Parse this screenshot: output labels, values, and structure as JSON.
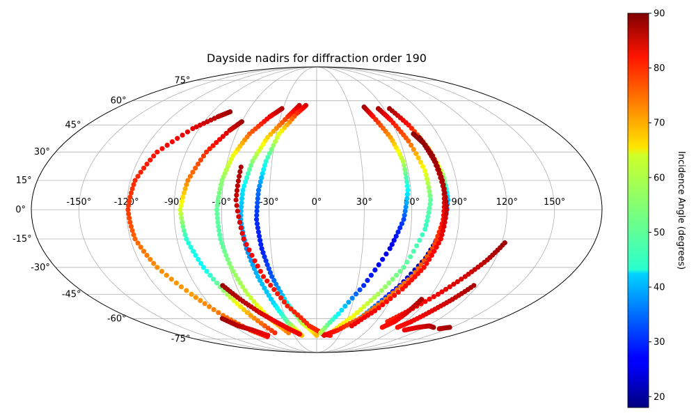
{
  "chart_data": {
    "type": "scatter",
    "projection": "mollweide",
    "title": "Dayside nadirs for diffraction order 190",
    "grid": true,
    "lon_ticks": [
      "-150°",
      "-120°",
      "-90°",
      "-60°",
      "-30°",
      "0°",
      "30°",
      "60°",
      "90°",
      "120°",
      "150°"
    ],
    "lat_ticks": [
      "75°",
      "60°",
      "45°",
      "30°",
      "15°",
      "0°",
      "-15°",
      "-30°",
      "-45°",
      "-60°",
      "-75°"
    ],
    "colorbar": {
      "label": "Incidence Angle (degrees)",
      "colormap": "jet",
      "range": [
        18,
        90
      ],
      "ticks": [
        "20",
        "30",
        "40",
        "50",
        "60",
        "70",
        "80",
        "90"
      ]
    },
    "series": [
      {
        "points": [
          [
            -75,
            53,
            88
          ],
          [
            -82,
            50,
            86
          ],
          [
            -95,
            43,
            83
          ],
          [
            -110,
            30,
            80
          ],
          [
            -117,
            15,
            78
          ],
          [
            -119,
            0,
            77
          ],
          [
            -117,
            -15,
            74
          ],
          [
            -110,
            -30,
            71
          ],
          [
            -98,
            -45,
            70
          ],
          [
            -88,
            -58,
            73
          ],
          [
            -78,
            -68,
            77
          ],
          [
            -68,
            -73,
            80
          ]
        ]
      },
      {
        "points": [
          [
            -60,
            47,
            88
          ],
          [
            -66,
            42,
            84
          ],
          [
            -76,
            30,
            78
          ],
          [
            -83,
            15,
            72
          ],
          [
            -86,
            0,
            60
          ],
          [
            -84,
            -15,
            48
          ],
          [
            -78,
            -30,
            45
          ],
          [
            -70,
            -45,
            57
          ],
          [
            -62,
            -58,
            70
          ],
          [
            -52,
            -70,
            78
          ]
        ]
      },
      {
        "points": [
          [
            -31,
            55,
            87
          ],
          [
            -39,
            50,
            82
          ],
          [
            -50,
            40,
            74
          ],
          [
            -57,
            28,
            62
          ],
          [
            -61,
            15,
            55
          ],
          [
            -63,
            0,
            52
          ],
          [
            -62,
            -15,
            51
          ],
          [
            -59,
            -30,
            55
          ],
          [
            -54,
            -45,
            58
          ],
          [
            -46,
            -60,
            65
          ],
          [
            -35,
            -70,
            72
          ]
        ]
      },
      {
        "points": [
          [
            -16,
            57,
            85
          ],
          [
            -24,
            50,
            78
          ],
          [
            -36,
            38,
            66
          ],
          [
            -43,
            25,
            55
          ],
          [
            -47,
            10,
            43
          ],
          [
            -48,
            -5,
            39
          ],
          [
            -46,
            -20,
            37
          ],
          [
            -42,
            -35,
            40
          ],
          [
            -36,
            -50,
            42
          ],
          [
            -30,
            -62,
            52
          ],
          [
            -20,
            -72,
            68
          ]
        ]
      },
      {
        "points": [
          [
            -10,
            57,
            84
          ],
          [
            -17,
            52,
            78
          ],
          [
            -28,
            40,
            62
          ],
          [
            -34,
            25,
            48
          ],
          [
            -37,
            10,
            35
          ],
          [
            -38,
            -5,
            30
          ],
          [
            -36,
            -20,
            29
          ],
          [
            -32,
            -35,
            33
          ],
          [
            -25,
            -50,
            44
          ],
          [
            -15,
            -63,
            58
          ],
          [
            0,
            -72,
            68
          ]
        ]
      },
      {
        "points": [
          [
            -50,
            22,
            87
          ],
          [
            -51,
            5,
            85
          ],
          [
            -47,
            -15,
            82
          ],
          [
            -38,
            -35,
            80
          ],
          [
            -25,
            -52,
            79
          ],
          [
            -8,
            -65,
            78
          ],
          [
            8,
            -71,
            79
          ],
          [
            18,
            -72,
            80
          ]
        ]
      },
      {
        "points": [
          [
            -70,
            -40,
            88
          ],
          [
            -62,
            -48,
            86
          ],
          [
            -52,
            -56,
            84
          ],
          [
            -42,
            -62,
            82
          ],
          [
            -32,
            -67,
            82
          ],
          [
            -22,
            -71,
            82
          ]
        ]
      },
      {
        "points": [
          [
            -92,
            -60,
            88
          ],
          [
            -85,
            -65,
            86
          ],
          [
            -75,
            -68,
            84
          ],
          [
            -65,
            -72,
            82
          ]
        ]
      },
      {
        "points": [
          [
            43,
            56,
            88
          ],
          [
            47,
            50,
            80
          ],
          [
            54,
            38,
            70
          ],
          [
            58,
            25,
            58
          ],
          [
            58,
            10,
            45
          ],
          [
            55,
            -5,
            32
          ],
          [
            48,
            -20,
            25
          ],
          [
            35,
            -40,
            30
          ],
          [
            20,
            -57,
            45
          ],
          [
            5,
            -70,
            58
          ]
        ]
      },
      {
        "points": [
          [
            55,
            55,
            87
          ],
          [
            60,
            48,
            80
          ],
          [
            66,
            36,
            74
          ],
          [
            71,
            20,
            62
          ],
          [
            72,
            5,
            52
          ],
          [
            69,
            -10,
            49
          ],
          [
            60,
            -30,
            52
          ],
          [
            48,
            -45,
            57
          ],
          [
            35,
            -58,
            62
          ],
          [
            18,
            -70,
            66
          ]
        ]
      },
      {
        "points": [
          [
            65,
            55,
            88
          ],
          [
            72,
            45,
            80
          ],
          [
            78,
            32,
            70
          ],
          [
            82,
            18,
            57
          ],
          [
            83,
            5,
            40
          ],
          [
            80,
            -10,
            25
          ],
          [
            73,
            -25,
            20
          ],
          [
            62,
            -40,
            24
          ],
          [
            50,
            -52,
            35
          ],
          [
            40,
            -62,
            45
          ]
        ]
      },
      {
        "points": [
          [
            72,
            40,
            89
          ],
          [
            76,
            35,
            88
          ],
          [
            79,
            25,
            86
          ],
          [
            81,
            10,
            84
          ],
          [
            80,
            -5,
            80
          ],
          [
            76,
            -20,
            76
          ],
          [
            68,
            -35,
            73
          ],
          [
            56,
            -48,
            72
          ],
          [
            42,
            -60,
            75
          ],
          [
            25,
            -68,
            79
          ],
          [
            10,
            -72,
            82
          ]
        ]
      },
      {
        "points": [
          [
            75,
            38,
            89
          ],
          [
            79,
            28,
            88
          ],
          [
            81,
            15,
            87
          ],
          [
            82,
            0,
            85
          ],
          [
            80,
            -15,
            82
          ],
          [
            74,
            -30,
            80
          ],
          [
            65,
            -42,
            80
          ],
          [
            52,
            -55,
            81
          ],
          [
            38,
            -65,
            82
          ]
        ]
      },
      {
        "points": [
          [
            122,
            -17,
            88
          ],
          [
            115,
            -26,
            86
          ],
          [
            106,
            -35,
            84
          ],
          [
            95,
            -45,
            82
          ],
          [
            82,
            -55,
            80
          ],
          [
            72,
            -62,
            79
          ]
        ]
      },
      {
        "points": [
          [
            117,
            -40,
            87
          ],
          [
            110,
            -48,
            85
          ],
          [
            103,
            -55,
            83
          ],
          [
            96,
            -62,
            81
          ],
          [
            90,
            -66,
            80
          ]
        ]
      },
      {
        "points": [
          [
            85,
            -48,
            87
          ],
          [
            82,
            -56,
            84
          ],
          [
            79,
            -62,
            81
          ],
          [
            73,
            -66,
            80
          ]
        ]
      },
      {
        "points": [
          [
            130,
            -66,
            88
          ],
          [
            122,
            -65,
            86
          ],
          [
            113,
            -66,
            84
          ],
          [
            103,
            -68,
            82
          ]
        ]
      },
      {
        "points": [
          [
            148,
            -66,
            88
          ],
          [
            140,
            -67,
            86
          ]
        ]
      }
    ]
  }
}
